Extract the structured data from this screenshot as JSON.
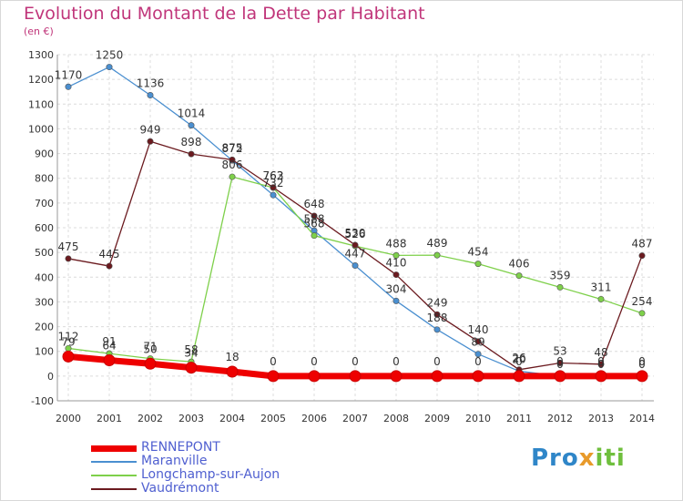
{
  "header": {
    "title": "Evolution du Montant de la Dette par Habitant",
    "unit": "(en €)"
  },
  "brand": {
    "logo_text": "Proxiti"
  },
  "chart_data": {
    "type": "line",
    "title": "Evolution du Montant de la Dette par Habitant",
    "ylabel": "(en €)",
    "xlabel": "",
    "x": [
      2000,
      2001,
      2002,
      2003,
      2004,
      2005,
      2006,
      2007,
      2008,
      2009,
      2010,
      2011,
      2012,
      2013,
      2014
    ],
    "ylim": [
      -100,
      1300
    ],
    "yticks": [
      -100,
      0,
      100,
      200,
      300,
      400,
      500,
      600,
      700,
      800,
      900,
      1000,
      1100,
      1200,
      1300
    ],
    "grid": true,
    "legend_position": "bottom-left",
    "series": [
      {
        "name": "RENNEPONT",
        "color": "#ee0000",
        "values": [
          79,
          64,
          50,
          34,
          18,
          0,
          0,
          0,
          0,
          0,
          0,
          0,
          0,
          0,
          0
        ],
        "labels": [
          "79",
          "64",
          "50",
          "34",
          "18",
          "0",
          "0",
          "0",
          "0",
          "0",
          "0",
          "0",
          "0",
          "0",
          "0"
        ]
      },
      {
        "name": "Maranville",
        "color": "#4a8fd0",
        "values": [
          1170,
          1250,
          1136,
          1014,
          872,
          732,
          588,
          447,
          304,
          188,
          89,
          20,
          0,
          0,
          0
        ],
        "labels": [
          "1170",
          "1250",
          "1136",
          "1014",
          "872",
          "732",
          "588",
          "447",
          "304",
          "188",
          "89",
          "20",
          "0",
          "0",
          "0"
        ]
      },
      {
        "name": "Longchamp-sur-Aujon",
        "color": "#7ed04a",
        "values": [
          112,
          91,
          71,
          58,
          806,
          762,
          568,
          526,
          488,
          489,
          454,
          406,
          359,
          311,
          254
        ],
        "labels": [
          "112",
          "91",
          "71",
          "58",
          "806",
          "762",
          "568",
          "526",
          "488",
          "489",
          "454",
          "406",
          "359",
          "311",
          "254"
        ]
      },
      {
        "name": "Vaudrémont",
        "color": "#6b1a1f",
        "values": [
          475,
          445,
          949,
          898,
          875,
          763,
          648,
          530,
          410,
          249,
          140,
          26,
          53,
          48,
          487
        ],
        "labels": [
          "475",
          "445",
          "949",
          "898",
          "875",
          "763",
          "648",
          "530",
          "410",
          "249",
          "140",
          "26",
          "53",
          "48",
          "487"
        ]
      }
    ]
  }
}
